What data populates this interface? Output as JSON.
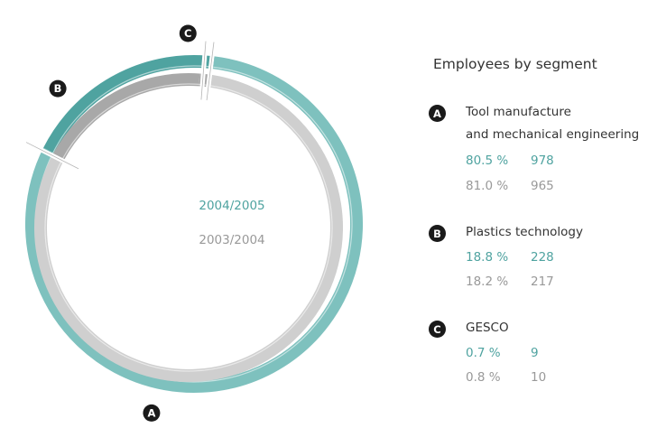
{
  "chart_data": {
    "type": "pie",
    "title": "Employees by segment",
    "center_labels": {
      "current": "2004/2005",
      "previous": "2003/2004"
    },
    "series": [
      {
        "name": "2004/2005",
        "color": "#7ec1be"
      },
      {
        "name": "2003/2004",
        "color": "#cfcfcf"
      }
    ],
    "segments": [
      {
        "letter": "A",
        "name_lines": [
          "Tool manufacture",
          "and mechanical engineering"
        ],
        "current": {
          "percent": "80.5 %",
          "count": "978",
          "share": 80.5
        },
        "previous": {
          "percent": "81.0 %",
          "count": "965",
          "share": 81.0
        }
      },
      {
        "letter": "B",
        "name_lines": [
          "Plastics technology"
        ],
        "current": {
          "percent": "18.8 %",
          "count": "228",
          "share": 18.8
        },
        "previous": {
          "percent": "18.2 %",
          "count": "217",
          "share": 18.2
        }
      },
      {
        "letter": "C",
        "name_lines": [
          "GESCO"
        ],
        "current": {
          "percent": "0.7 %",
          "count": "9",
          "share": 0.7
        },
        "previous": {
          "percent": "0.8 %",
          "count": "10",
          "share": 0.8
        }
      }
    ]
  }
}
